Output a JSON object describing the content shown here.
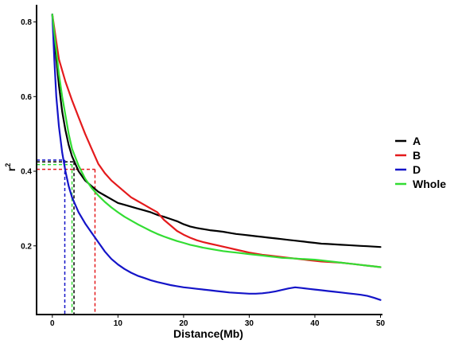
{
  "chart_data": {
    "type": "line",
    "xlabel": "Distance(Mb)",
    "ylabel": "r",
    "ylabel_superscript": "2",
    "xlim": [
      -2.4,
      50.3
    ],
    "ylim": [
      0.016,
      0.846
    ],
    "xticks": [
      0,
      10,
      20,
      30,
      40,
      50
    ],
    "yticks": [
      0.2,
      0.4,
      0.6,
      0.8
    ],
    "xtick_labels": [
      "0",
      "10",
      "20",
      "30",
      "40",
      "50"
    ],
    "ytick_labels": [
      "0.2",
      "0.4",
      "0.6",
      "0.8"
    ],
    "grid": false,
    "legend_position": "right",
    "series": [
      {
        "name": "A",
        "color": "#000000",
        "points": [
          [
            0,
            0.82
          ],
          [
            0.5,
            0.72
          ],
          [
            1,
            0.63
          ],
          [
            1.5,
            0.56
          ],
          [
            2,
            0.51
          ],
          [
            2.5,
            0.47
          ],
          [
            3,
            0.44
          ],
          [
            4,
            0.4
          ],
          [
            5,
            0.375
          ],
          [
            6,
            0.36
          ],
          [
            7,
            0.345
          ],
          [
            8,
            0.335
          ],
          [
            9,
            0.325
          ],
          [
            10,
            0.315
          ],
          [
            11,
            0.31
          ],
          [
            12,
            0.305
          ],
          [
            13,
            0.3
          ],
          [
            14,
            0.295
          ],
          [
            15,
            0.29
          ],
          [
            16,
            0.283
          ],
          [
            17,
            0.278
          ],
          [
            18,
            0.272
          ],
          [
            19,
            0.266
          ],
          [
            20,
            0.258
          ],
          [
            21,
            0.252
          ],
          [
            22,
            0.248
          ],
          [
            23,
            0.245
          ],
          [
            24,
            0.242
          ],
          [
            25,
            0.24
          ],
          [
            26,
            0.238
          ],
          [
            27,
            0.235
          ],
          [
            28,
            0.232
          ],
          [
            29,
            0.23
          ],
          [
            30,
            0.228
          ],
          [
            31,
            0.226
          ],
          [
            32,
            0.224
          ],
          [
            33,
            0.222
          ],
          [
            34,
            0.22
          ],
          [
            35,
            0.218
          ],
          [
            36,
            0.216
          ],
          [
            37,
            0.214
          ],
          [
            38,
            0.212
          ],
          [
            39,
            0.21
          ],
          [
            40,
            0.208
          ],
          [
            41,
            0.206
          ],
          [
            42,
            0.205
          ],
          [
            43,
            0.204
          ],
          [
            44,
            0.203
          ],
          [
            45,
            0.202
          ],
          [
            46,
            0.201
          ],
          [
            47,
            0.2
          ],
          [
            48,
            0.199
          ],
          [
            49,
            0.198
          ],
          [
            50,
            0.197
          ]
        ]
      },
      {
        "name": "B",
        "color": "#e41a1c",
        "points": [
          [
            0,
            0.82
          ],
          [
            0.5,
            0.76
          ],
          [
            1,
            0.7
          ],
          [
            2,
            0.64
          ],
          [
            3,
            0.59
          ],
          [
            4,
            0.545
          ],
          [
            5,
            0.5
          ],
          [
            6,
            0.46
          ],
          [
            7,
            0.42
          ],
          [
            8,
            0.395
          ],
          [
            9,
            0.375
          ],
          [
            10,
            0.36
          ],
          [
            11,
            0.345
          ],
          [
            12,
            0.33
          ],
          [
            13,
            0.32
          ],
          [
            14,
            0.31
          ],
          [
            15,
            0.3
          ],
          [
            16,
            0.29
          ],
          [
            17,
            0.27
          ],
          [
            18,
            0.255
          ],
          [
            19,
            0.24
          ],
          [
            20,
            0.23
          ],
          [
            21,
            0.222
          ],
          [
            22,
            0.215
          ],
          [
            23,
            0.21
          ],
          [
            24,
            0.206
          ],
          [
            25,
            0.202
          ],
          [
            26,
            0.198
          ],
          [
            27,
            0.194
          ],
          [
            28,
            0.19
          ],
          [
            29,
            0.186
          ],
          [
            30,
            0.182
          ],
          [
            31,
            0.179
          ],
          [
            32,
            0.176
          ],
          [
            33,
            0.174
          ],
          [
            34,
            0.172
          ],
          [
            35,
            0.17
          ],
          [
            36,
            0.168
          ],
          [
            37,
            0.166
          ],
          [
            38,
            0.164
          ],
          [
            39,
            0.162
          ],
          [
            40,
            0.16
          ],
          [
            41,
            0.158
          ],
          [
            42,
            0.157
          ],
          [
            43,
            0.156
          ],
          [
            44,
            0.155
          ],
          [
            45,
            0.153
          ],
          [
            46,
            0.151
          ],
          [
            47,
            0.149
          ],
          [
            48,
            0.147
          ],
          [
            49,
            0.145
          ],
          [
            50,
            0.143
          ]
        ]
      },
      {
        "name": "D",
        "color": "#1414c8",
        "points": [
          [
            0,
            0.82
          ],
          [
            0.3,
            0.7
          ],
          [
            0.6,
            0.6
          ],
          [
            1,
            0.52
          ],
          [
            1.5,
            0.45
          ],
          [
            2,
            0.4
          ],
          [
            2.5,
            0.36
          ],
          [
            3,
            0.33
          ],
          [
            4,
            0.29
          ],
          [
            5,
            0.26
          ],
          [
            6,
            0.235
          ],
          [
            7,
            0.21
          ],
          [
            8,
            0.185
          ],
          [
            9,
            0.165
          ],
          [
            10,
            0.15
          ],
          [
            11,
            0.138
          ],
          [
            12,
            0.128
          ],
          [
            13,
            0.12
          ],
          [
            14,
            0.114
          ],
          [
            15,
            0.108
          ],
          [
            16,
            0.103
          ],
          [
            17,
            0.099
          ],
          [
            18,
            0.095
          ],
          [
            19,
            0.092
          ],
          [
            20,
            0.089
          ],
          [
            21,
            0.087
          ],
          [
            22,
            0.085
          ],
          [
            23,
            0.083
          ],
          [
            24,
            0.081
          ],
          [
            25,
            0.079
          ],
          [
            26,
            0.077
          ],
          [
            27,
            0.075
          ],
          [
            28,
            0.074
          ],
          [
            29,
            0.073
          ],
          [
            30,
            0.072
          ],
          [
            31,
            0.072
          ],
          [
            32,
            0.073
          ],
          [
            33,
            0.075
          ],
          [
            34,
            0.078
          ],
          [
            35,
            0.082
          ],
          [
            36,
            0.086
          ],
          [
            37,
            0.089
          ],
          [
            38,
            0.087
          ],
          [
            39,
            0.085
          ],
          [
            40,
            0.083
          ],
          [
            41,
            0.081
          ],
          [
            42,
            0.079
          ],
          [
            43,
            0.077
          ],
          [
            44,
            0.075
          ],
          [
            45,
            0.073
          ],
          [
            46,
            0.071
          ],
          [
            47,
            0.069
          ],
          [
            48,
            0.066
          ],
          [
            49,
            0.061
          ],
          [
            50,
            0.055
          ]
        ]
      },
      {
        "name": "Whole",
        "color": "#33dd33",
        "points": [
          [
            0,
            0.82
          ],
          [
            0.5,
            0.74
          ],
          [
            1,
            0.66
          ],
          [
            1.5,
            0.6
          ],
          [
            2,
            0.55
          ],
          [
            2.5,
            0.5
          ],
          [
            3,
            0.46
          ],
          [
            4,
            0.415
          ],
          [
            5,
            0.38
          ],
          [
            6,
            0.355
          ],
          [
            7,
            0.335
          ],
          [
            8,
            0.318
          ],
          [
            9,
            0.303
          ],
          [
            10,
            0.29
          ],
          [
            11,
            0.278
          ],
          [
            12,
            0.268
          ],
          [
            13,
            0.258
          ],
          [
            14,
            0.249
          ],
          [
            15,
            0.24
          ],
          [
            16,
            0.232
          ],
          [
            17,
            0.225
          ],
          [
            18,
            0.219
          ],
          [
            19,
            0.213
          ],
          [
            20,
            0.208
          ],
          [
            21,
            0.203
          ],
          [
            22,
            0.199
          ],
          [
            23,
            0.195
          ],
          [
            24,
            0.192
          ],
          [
            25,
            0.189
          ],
          [
            26,
            0.186
          ],
          [
            27,
            0.184
          ],
          [
            28,
            0.182
          ],
          [
            29,
            0.18
          ],
          [
            30,
            0.178
          ],
          [
            31,
            0.176
          ],
          [
            32,
            0.174
          ],
          [
            33,
            0.172
          ],
          [
            34,
            0.17
          ],
          [
            35,
            0.168
          ],
          [
            36,
            0.167
          ],
          [
            37,
            0.166
          ],
          [
            38,
            0.165
          ],
          [
            39,
            0.164
          ],
          [
            40,
            0.163
          ],
          [
            41,
            0.161
          ],
          [
            42,
            0.159
          ],
          [
            43,
            0.157
          ],
          [
            44,
            0.155
          ],
          [
            45,
            0.153
          ],
          [
            46,
            0.151
          ],
          [
            47,
            0.149
          ],
          [
            48,
            0.147
          ],
          [
            49,
            0.145
          ],
          [
            50,
            0.143
          ]
        ]
      }
    ],
    "reference_lines": [
      {
        "series": "A",
        "color": "#000000",
        "x": 3.3,
        "y": 0.425
      },
      {
        "series": "B",
        "color": "#e41a1c",
        "x": 6.5,
        "y": 0.405
      },
      {
        "series": "D",
        "color": "#1414c8",
        "x": 1.9,
        "y": 0.43
      },
      {
        "series": "Whole",
        "color": "#33dd33",
        "x": 3.0,
        "y": 0.418
      }
    ]
  }
}
